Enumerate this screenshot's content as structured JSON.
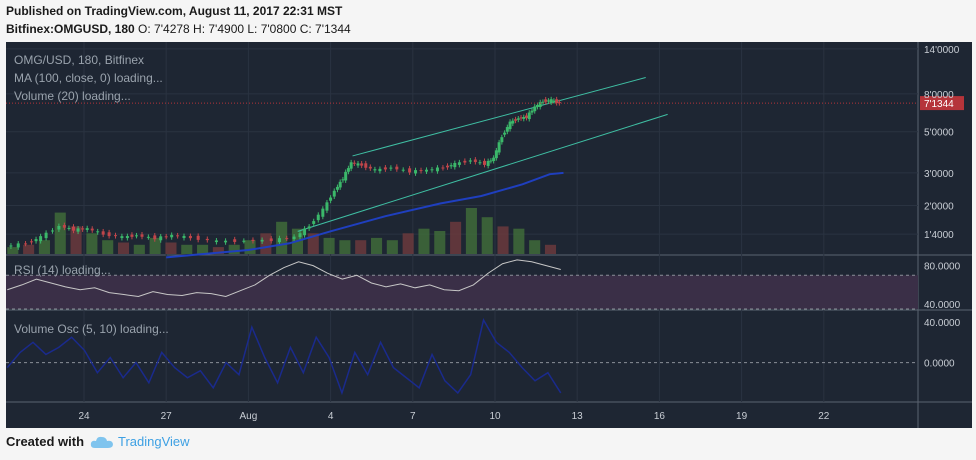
{
  "header": {
    "published": "Published on TradingView.com, August 11, 2017 22:31 MST",
    "symbol": "Bitfinex:OMGUSD, 180",
    "ohlc": "O: 7'4278  H: 7'4900  L: 7'0800  C: 7'1344"
  },
  "footer": {
    "created_with": "Created with",
    "brand": "TradingView"
  },
  "colors": {
    "background": "#1e2633",
    "up": "#3bb86a",
    "down": "#c0454a",
    "ma": "#1f3fbf",
    "channel": "#3fbfa3",
    "rsi": "#c7c7c7",
    "rsi_band": "#3a2f47",
    "osc": "#1a2a8c",
    "price_tag": "#b5343a"
  },
  "chart_data": [
    {
      "type": "line",
      "panel": "price",
      "labels": {
        "title": "OMG/USD, 180, Bitfinex",
        "ma": "MA (100, close, 0) loading...",
        "volume": "Volume (20) loading..."
      },
      "scale": "log",
      "ylim": [
        1.15,
        14.5
      ],
      "y_ticks": [
        {
          "v": 14.0,
          "t": "14'0000"
        },
        {
          "v": 8.0,
          "t": "8'0000"
        },
        {
          "v": 5.0,
          "t": "5'0000"
        },
        {
          "v": 3.0,
          "t": "3'0000"
        },
        {
          "v": 2.0,
          "t": "2'0000"
        },
        {
          "v": 1.4,
          "t": "1'4000"
        }
      ],
      "last_price": {
        "v": 7.1344,
        "t": "7'1344"
      },
      "x_ticks": [
        "24",
        "27",
        "Aug",
        "4",
        "7",
        "10",
        "13",
        "16",
        "19",
        "22"
      ],
      "x_tick_days": [
        0,
        3,
        6,
        9,
        12,
        15,
        18,
        21,
        24,
        27
      ],
      "price_path": [
        [
          -2.8,
          1.2
        ],
        [
          -2.0,
          1.25
        ],
        [
          -1.5,
          1.35
        ],
        [
          -0.8,
          1.55
        ],
        [
          -0.3,
          1.48
        ],
        [
          0.2,
          1.5
        ],
        [
          0.8,
          1.4
        ],
        [
          1.5,
          1.35
        ],
        [
          2.0,
          1.38
        ],
        [
          2.7,
          1.33
        ],
        [
          3.3,
          1.38
        ],
        [
          4.0,
          1.34
        ],
        [
          5.0,
          1.28
        ],
        [
          6.0,
          1.29
        ],
        [
          7.0,
          1.3
        ],
        [
          7.8,
          1.35
        ],
        [
          8.3,
          1.55
        ],
        [
          8.8,
          1.9
        ],
        [
          9.2,
          2.4
        ],
        [
          9.5,
          2.8
        ],
        [
          9.8,
          3.4
        ],
        [
          10.2,
          3.3
        ],
        [
          10.7,
          3.1
        ],
        [
          11.3,
          3.2
        ],
        [
          12.0,
          3.05
        ],
        [
          12.6,
          3.1
        ],
        [
          13.2,
          3.2
        ],
        [
          13.6,
          3.35
        ],
        [
          14.2,
          3.5
        ],
        [
          14.7,
          3.35
        ],
        [
          15.0,
          3.6
        ],
        [
          15.3,
          4.7
        ],
        [
          15.6,
          5.6
        ],
        [
          15.9,
          5.9
        ],
        [
          16.2,
          6.0
        ],
        [
          16.5,
          6.8
        ],
        [
          16.8,
          7.3
        ],
        [
          17.1,
          7.4
        ],
        [
          17.4,
          7.13
        ]
      ],
      "ma_path": [
        [
          3.0,
          1.05
        ],
        [
          6.0,
          1.15
        ],
        [
          7.5,
          1.25
        ],
        [
          9.0,
          1.45
        ],
        [
          11.0,
          1.75
        ],
        [
          13.0,
          2.05
        ],
        [
          14.5,
          2.25
        ],
        [
          16.0,
          2.6
        ],
        [
          17.0,
          2.95
        ],
        [
          17.5,
          3.0
        ]
      ],
      "channel_upper": [
        [
          9.8,
          3.7
        ],
        [
          20.5,
          9.8
        ]
      ],
      "channel_lower": [
        [
          7.8,
          1.45
        ],
        [
          21.3,
          6.2
        ]
      ],
      "volume": [
        0.15,
        0.2,
        0.3,
        0.9,
        0.6,
        0.45,
        0.3,
        0.25,
        0.2,
        0.35,
        0.25,
        0.2,
        0.2,
        0.15,
        0.2,
        0.3,
        0.45,
        0.7,
        0.55,
        0.45,
        0.35,
        0.3,
        0.3,
        0.35,
        0.3,
        0.45,
        0.55,
        0.5,
        0.7,
        1.0,
        0.8,
        0.6,
        0.55,
        0.3,
        0.2
      ]
    },
    {
      "type": "line",
      "panel": "rsi",
      "label": "RSI (14) loading...",
      "ylim": [
        35,
        90
      ],
      "y_ticks": [
        {
          "v": 80,
          "t": "80.0000"
        },
        {
          "v": 40,
          "t": "40.0000"
        }
      ],
      "band": [
        35,
        70
      ],
      "values": [
        55,
        60,
        66,
        62,
        58,
        55,
        57,
        52,
        50,
        48,
        53,
        50,
        49,
        52,
        51,
        48,
        54,
        60,
        70,
        78,
        84,
        80,
        72,
        66,
        70,
        62,
        58,
        61,
        57,
        60,
        55,
        54,
        60,
        72,
        82,
        86,
        84,
        80,
        76
      ]
    },
    {
      "type": "line",
      "panel": "volume_osc",
      "label": "Volume Osc (5, 10) loading...",
      "ylim": [
        -35,
        45
      ],
      "y_ticks": [
        {
          "v": 40,
          "t": "40.0000"
        },
        {
          "v": 0,
          "t": "0.0000"
        }
      ],
      "zero_line": 0,
      "values": [
        -5,
        10,
        20,
        8,
        15,
        25,
        12,
        -10,
        5,
        -15,
        0,
        -20,
        10,
        -5,
        -15,
        -8,
        -25,
        0,
        -12,
        35,
        5,
        -20,
        15,
        -10,
        25,
        5,
        -30,
        10,
        -12,
        20,
        -5,
        -15,
        -25,
        8,
        -18,
        -30,
        -12,
        42,
        20,
        10,
        -5,
        -18,
        -10,
        -30
      ]
    }
  ]
}
